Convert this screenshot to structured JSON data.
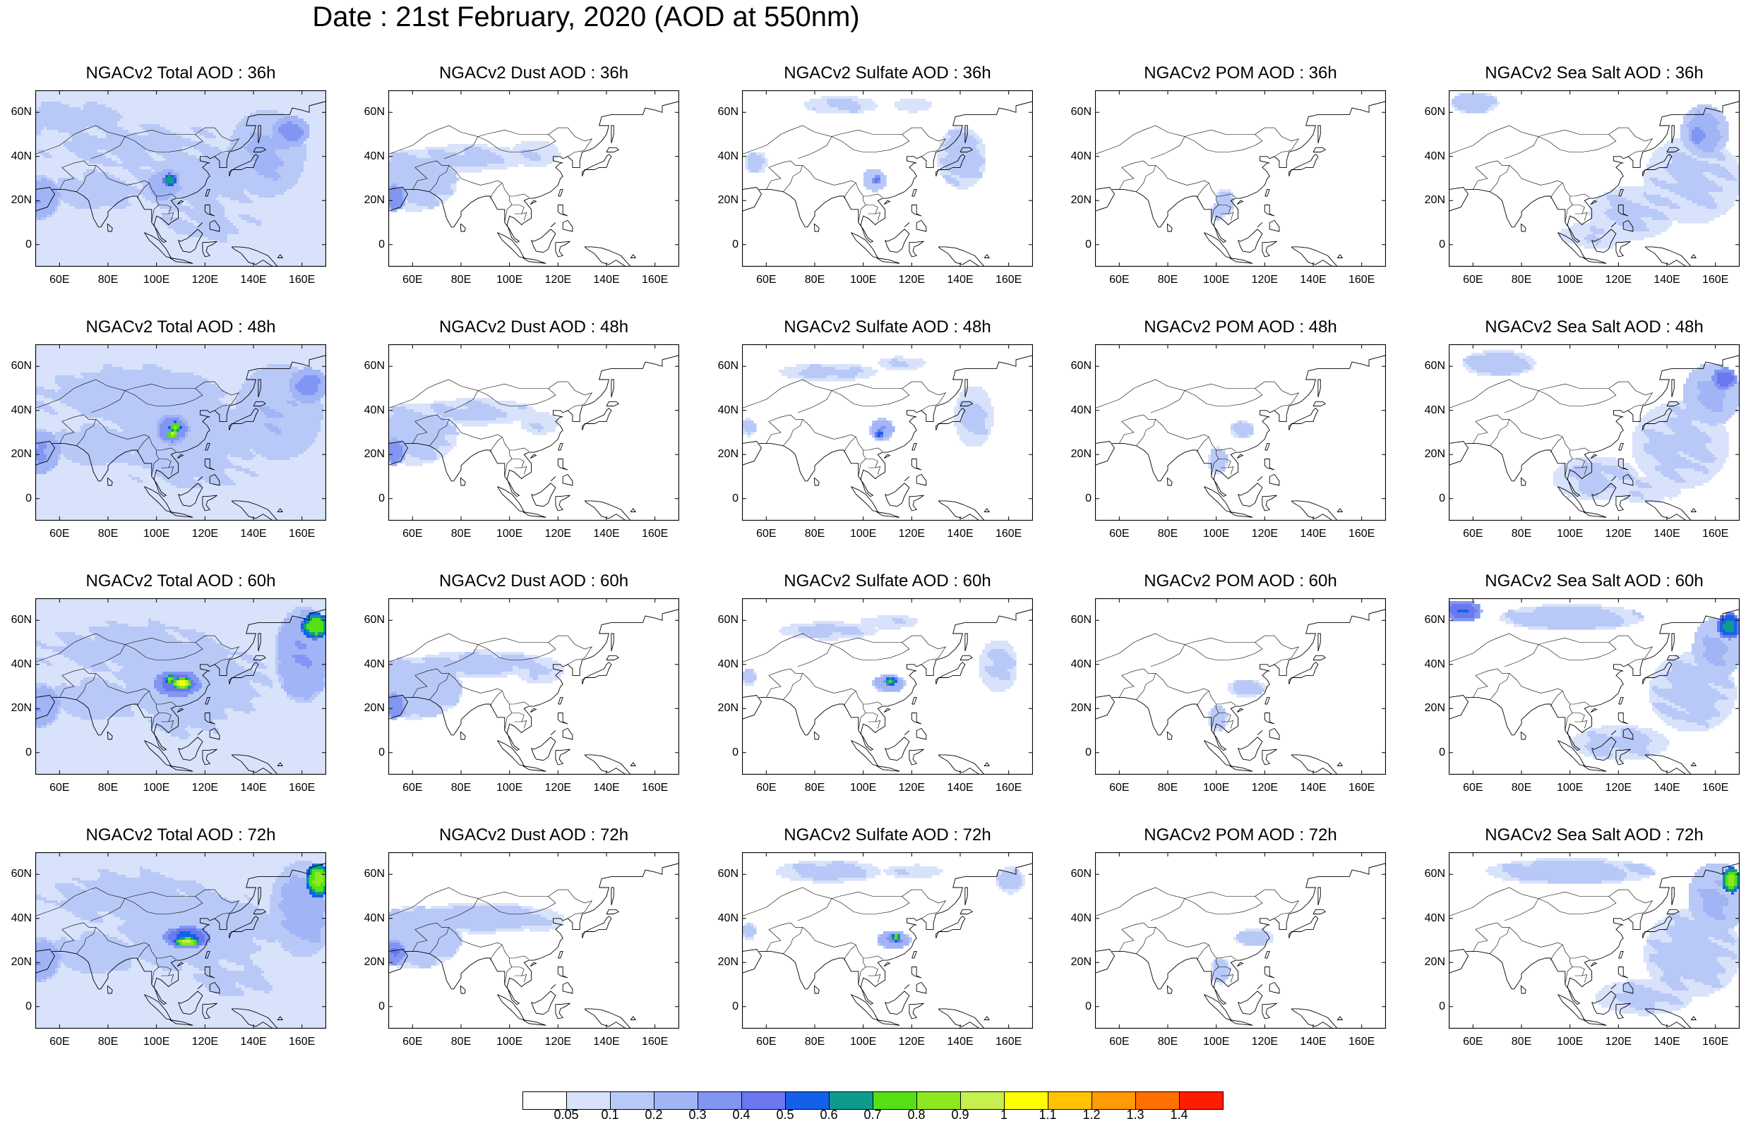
{
  "title": "Date : 21st February, 2020 (AOD at 550nm)",
  "x_tick_labels": [
    "60E",
    "80E",
    "100E",
    "120E",
    "140E",
    "160E"
  ],
  "y_tick_labels": [
    "60N",
    "40N",
    "20N",
    "0"
  ],
  "panels": [
    {
      "title": "NGACv2 Total AOD : 36h",
      "species": "total",
      "hour": 36
    },
    {
      "title": "NGACv2 Dust AOD : 36h",
      "species": "dust",
      "hour": 36
    },
    {
      "title": "NGACv2 Sulfate AOD : 36h",
      "species": "sulfate",
      "hour": 36
    },
    {
      "title": "NGACv2 POM AOD : 36h",
      "species": "pom",
      "hour": 36
    },
    {
      "title": "NGACv2 Sea Salt AOD : 36h",
      "species": "seasalt",
      "hour": 36
    },
    {
      "title": "NGACv2 Total AOD : 48h",
      "species": "total",
      "hour": 48
    },
    {
      "title": "NGACv2 Dust AOD : 48h",
      "species": "dust",
      "hour": 48
    },
    {
      "title": "NGACv2 Sulfate AOD : 48h",
      "species": "sulfate",
      "hour": 48
    },
    {
      "title": "NGACv2 POM AOD : 48h",
      "species": "pom",
      "hour": 48
    },
    {
      "title": "NGACv2 Sea Salt AOD : 48h",
      "species": "seasalt",
      "hour": 48
    },
    {
      "title": "NGACv2 Total AOD : 60h",
      "species": "total",
      "hour": 60
    },
    {
      "title": "NGACv2 Dust AOD : 60h",
      "species": "dust",
      "hour": 60
    },
    {
      "title": "NGACv2 Sulfate AOD : 60h",
      "species": "sulfate",
      "hour": 60
    },
    {
      "title": "NGACv2 POM AOD : 60h",
      "species": "pom",
      "hour": 60
    },
    {
      "title": "NGACv2 Sea Salt AOD : 60h",
      "species": "seasalt",
      "hour": 60
    },
    {
      "title": "NGACv2 Total AOD : 72h",
      "species": "total",
      "hour": 72
    },
    {
      "title": "NGACv2 Dust AOD : 72h",
      "species": "dust",
      "hour": 72
    },
    {
      "title": "NGACv2 Sulfate AOD : 72h",
      "species": "sulfate",
      "hour": 72
    },
    {
      "title": "NGACv2 POM AOD : 72h",
      "species": "pom",
      "hour": 72
    },
    {
      "title": "NGACv2 Sea Salt  AOD : 72h",
      "species": "seasalt",
      "hour": 72
    }
  ],
  "colorbar": {
    "labels": [
      "0.05",
      "0.1",
      "0.2",
      "0.3",
      "0.4",
      "0.5",
      "0.6",
      "0.7",
      "0.8",
      "0.9",
      "1",
      "1.1",
      "1.2",
      "1.3",
      "1.4"
    ],
    "colors": [
      "#ffffff",
      "#d8e2fb",
      "#b9c9f7",
      "#a1b4f6",
      "#8196f2",
      "#6b77ee",
      "#1560e8",
      "#0d9c8c",
      "#55e016",
      "#8ee81f",
      "#c6f04d",
      "#ffff00",
      "#ffc300",
      "#ff9a00",
      "#ff7000",
      "#ff1c00"
    ]
  }
}
